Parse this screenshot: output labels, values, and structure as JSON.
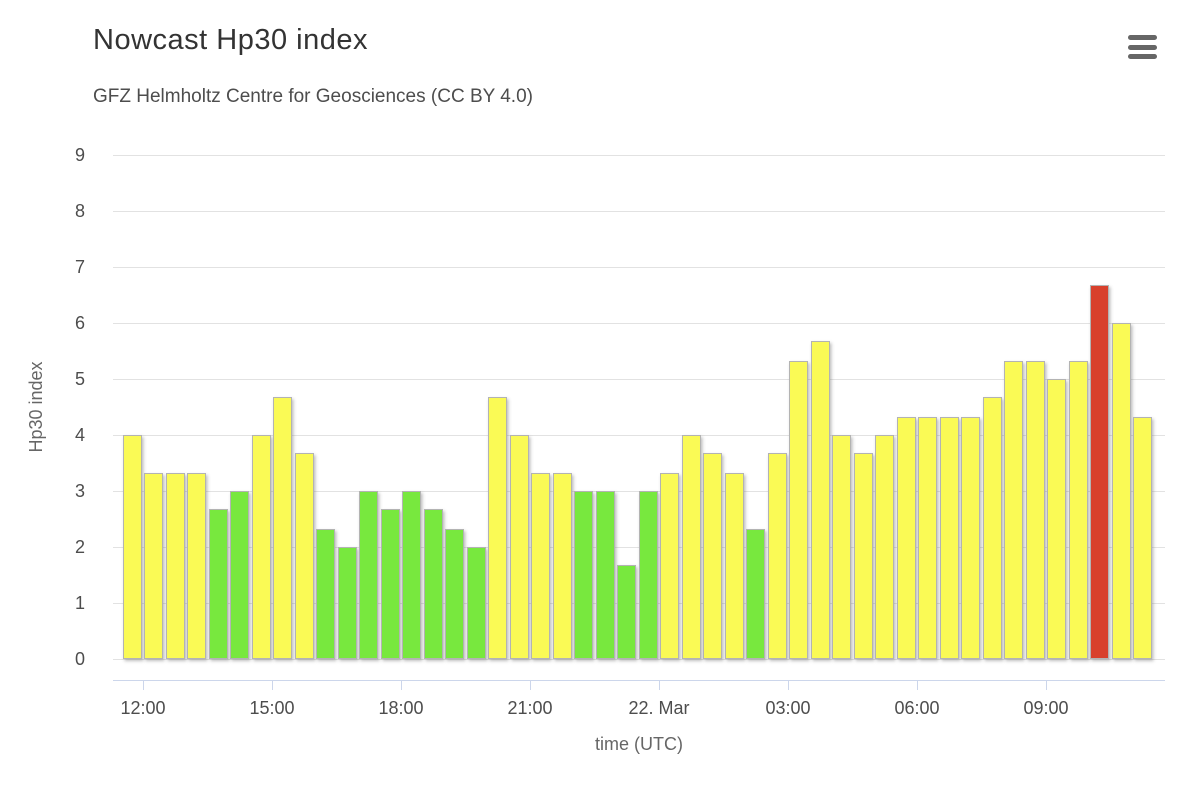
{
  "chart": {
    "title": "Nowcast Hp30 index",
    "subtitle": "GFZ Helmholtz Centre for Geosciences (CC BY 4.0)",
    "context_menu_icon": "hamburger-menu-icon"
  },
  "chart_data": {
    "type": "bar",
    "title": "Nowcast Hp30 index",
    "subtitle": "GFZ Helmholtz Centre for Geosciences (CC BY 4.0)",
    "xlabel": "time (UTC)",
    "ylabel": "Hp30 index",
    "ylim": [
      0,
      9
    ],
    "yticks": [
      0,
      1,
      2,
      3,
      4,
      5,
      6,
      7,
      8,
      9
    ],
    "grid": "horizontal",
    "legend": "none",
    "bar_interval_minutes": 30,
    "x_range": "21. Mar 11:30 UTC to 22. Mar 11:30 UTC",
    "xticks": [
      {
        "label": "12:00",
        "slot": 1
      },
      {
        "label": "15:00",
        "slot": 7
      },
      {
        "label": "18:00",
        "slot": 13
      },
      {
        "label": "21:00",
        "slot": 19
      },
      {
        "label": "22. Mar",
        "slot": 25
      },
      {
        "label": "03:00",
        "slot": 31
      },
      {
        "label": "06:00",
        "slot": 37
      },
      {
        "label": "09:00",
        "slot": 43
      }
    ],
    "level_colors": {
      "green": "#78E83E",
      "yellow": "#FAFA55",
      "red": "#D8402C"
    },
    "points": [
      {
        "t": "11:30",
        "v": 4.0,
        "level": "yellow"
      },
      {
        "t": "12:00",
        "v": 3.33,
        "level": "yellow"
      },
      {
        "t": "12:30",
        "v": 3.33,
        "level": "yellow"
      },
      {
        "t": "13:00",
        "v": 3.33,
        "level": "yellow"
      },
      {
        "t": "13:30",
        "v": 2.67,
        "level": "green"
      },
      {
        "t": "14:00",
        "v": 3.0,
        "level": "green"
      },
      {
        "t": "14:30",
        "v": 4.0,
        "level": "yellow"
      },
      {
        "t": "15:00",
        "v": 4.67,
        "level": "yellow"
      },
      {
        "t": "15:30",
        "v": 3.67,
        "level": "yellow"
      },
      {
        "t": "16:00",
        "v": 2.33,
        "level": "green"
      },
      {
        "t": "16:30",
        "v": 2.0,
        "level": "green"
      },
      {
        "t": "17:00",
        "v": 3.0,
        "level": "green"
      },
      {
        "t": "17:30",
        "v": 2.67,
        "level": "green"
      },
      {
        "t": "18:00",
        "v": 3.0,
        "level": "green"
      },
      {
        "t": "18:30",
        "v": 2.67,
        "level": "green"
      },
      {
        "t": "19:00",
        "v": 2.33,
        "level": "green"
      },
      {
        "t": "19:30",
        "v": 2.0,
        "level": "green"
      },
      {
        "t": "20:00",
        "v": 4.67,
        "level": "yellow"
      },
      {
        "t": "20:30",
        "v": 4.0,
        "level": "yellow"
      },
      {
        "t": "21:00",
        "v": 3.33,
        "level": "yellow"
      },
      {
        "t": "21:30",
        "v": 3.33,
        "level": "yellow"
      },
      {
        "t": "22:00",
        "v": 3.0,
        "level": "green"
      },
      {
        "t": "22:30",
        "v": 3.0,
        "level": "green"
      },
      {
        "t": "23:00",
        "v": 1.67,
        "level": "green"
      },
      {
        "t": "23:30",
        "v": 3.0,
        "level": "green"
      },
      {
        "t": "00:00",
        "v": 3.33,
        "level": "yellow"
      },
      {
        "t": "00:30",
        "v": 4.0,
        "level": "yellow"
      },
      {
        "t": "01:00",
        "v": 3.67,
        "level": "yellow"
      },
      {
        "t": "01:30",
        "v": 3.33,
        "level": "yellow"
      },
      {
        "t": "02:00",
        "v": 2.33,
        "level": "green"
      },
      {
        "t": "02:30",
        "v": 3.67,
        "level": "yellow"
      },
      {
        "t": "03:00",
        "v": 5.33,
        "level": "yellow"
      },
      {
        "t": "03:30",
        "v": 5.67,
        "level": "yellow"
      },
      {
        "t": "04:00",
        "v": 4.0,
        "level": "yellow"
      },
      {
        "t": "04:30",
        "v": 3.67,
        "level": "yellow"
      },
      {
        "t": "05:00",
        "v": 4.0,
        "level": "yellow"
      },
      {
        "t": "05:30",
        "v": 4.33,
        "level": "yellow"
      },
      {
        "t": "06:00",
        "v": 4.33,
        "level": "yellow"
      },
      {
        "t": "06:30",
        "v": 4.33,
        "level": "yellow"
      },
      {
        "t": "07:00",
        "v": 4.33,
        "level": "yellow"
      },
      {
        "t": "07:30",
        "v": 4.67,
        "level": "yellow"
      },
      {
        "t": "08:00",
        "v": 5.33,
        "level": "yellow"
      },
      {
        "t": "08:30",
        "v": 5.33,
        "level": "yellow"
      },
      {
        "t": "09:00",
        "v": 5.0,
        "level": "yellow"
      },
      {
        "t": "09:30",
        "v": 5.33,
        "level": "yellow"
      },
      {
        "t": "10:00",
        "v": 6.67,
        "level": "red"
      },
      {
        "t": "10:30",
        "v": 6.0,
        "level": "yellow"
      },
      {
        "t": "11:00",
        "v": 4.33,
        "level": "yellow"
      }
    ]
  },
  "colors": {
    "background": "#ffffff",
    "bar_border": "#b3b3b3",
    "gridline": "#e2e2e2",
    "x_axis_line": "#ccd6eb",
    "title_text": "#333333",
    "axis_label_text": "#4d4d4d",
    "axis_title_text": "#666666",
    "menu_icon": "#666666"
  }
}
